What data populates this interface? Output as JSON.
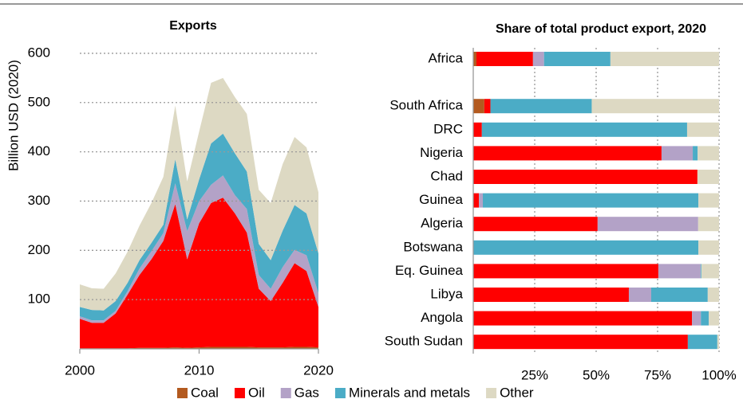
{
  "chart_data": [
    {
      "type": "area",
      "title": "Exports",
      "y_label": "Billion USD (2020)",
      "x": [
        2000,
        2001,
        2002,
        2003,
        2004,
        2005,
        2006,
        2007,
        2008,
        2009,
        2010,
        2011,
        2012,
        2013,
        2014,
        2015,
        2016,
        2017,
        2018,
        2019,
        2020
      ],
      "series": [
        {
          "name": "Coal",
          "color": "#b35a1f",
          "values": [
            1,
            1,
            1,
            1,
            1,
            2,
            2,
            2,
            3,
            2,
            3,
            4,
            4,
            4,
            4,
            3,
            3,
            3,
            4,
            4,
            3
          ]
        },
        {
          "name": "Oil",
          "color": "#ff0000",
          "values": [
            60,
            52,
            52,
            71,
            109,
            148,
            180,
            217,
            291,
            180,
            252,
            292,
            303,
            271,
            232,
            119,
            94,
            131,
            170,
            154,
            82
          ]
        },
        {
          "name": "Gas",
          "color": "#b3a2c7",
          "values": [
            5,
            5,
            5,
            5,
            7,
            13,
            16,
            16,
            42,
            57,
            45,
            37,
            45,
            37,
            48,
            28,
            25,
            32,
            27,
            32,
            28
          ]
        },
        {
          "name": "Minerals and metals",
          "color": "#4bacc6",
          "values": [
            19,
            21,
            20,
            20,
            17,
            17,
            17,
            17,
            49,
            24,
            44,
            84,
            85,
            85,
            76,
            63,
            58,
            74,
            91,
            85,
            81
          ]
        },
        {
          "name": "Other",
          "color": "#ddd9c3",
          "values": [
            46,
            44,
            44,
            56,
            63,
            70,
            81,
            97,
            109,
            77,
            97,
            123,
            113,
            114,
            117,
            110,
            116,
            135,
            138,
            134,
            124
          ]
        }
      ],
      "xlim": [
        2000,
        2020
      ],
      "xticks": [
        2000,
        2010,
        2020
      ],
      "ylim": [
        0,
        650
      ],
      "yticks": [
        100,
        200,
        300,
        400,
        500,
        600
      ],
      "grid": true,
      "legend": "bottom"
    },
    {
      "type": "hbar_stacked",
      "title": "Share of total product export, 2020",
      "categories": [
        "Africa",
        null,
        "South Africa",
        "DRC",
        "Nigeria",
        "Chad",
        "Guinea",
        "Algeria",
        "Botswana",
        "Eq. Guinea",
        "Libya",
        "Angola",
        "South Sudan"
      ],
      "series": [
        {
          "color": "#b35a1f",
          "values": [
            1.3,
            null,
            4.5,
            0,
            0,
            0,
            0,
            0,
            0,
            0,
            0,
            0,
            0
          ]
        },
        {
          "color": "#ff0000",
          "values": [
            23,
            null,
            2.5,
            3.5,
            76.6,
            91.2,
            2.3,
            50.6,
            0,
            75.3,
            63.3,
            89,
            87.3
          ]
        },
        {
          "color": "#b3a2c7",
          "values": [
            4.5,
            null,
            0,
            0,
            12.7,
            0,
            1.6,
            40.9,
            0,
            17.2,
            9.1,
            3.6,
            0
          ]
        },
        {
          "color": "#4bacc6",
          "values": [
            27,
            null,
            41.2,
            83.5,
            2,
            0,
            87.7,
            0,
            91.6,
            0.3,
            23,
            3.2,
            12
          ]
        },
        {
          "color": "#ddd9c3",
          "values": [
            44.2,
            null,
            51.8,
            13,
            8.7,
            8.8,
            8.4,
            8.5,
            8.4,
            7.2,
            4.6,
            4.2,
            0.7
          ]
        }
      ],
      "xlim": [
        0,
        100
      ],
      "xticks": [
        {
          "value": 25,
          "label": "25%"
        },
        {
          "value": 50,
          "label": "50%"
        },
        {
          "value": 75,
          "label": "75%"
        },
        {
          "value": 100,
          "label": "100%"
        }
      ],
      "grid": true
    }
  ]
}
